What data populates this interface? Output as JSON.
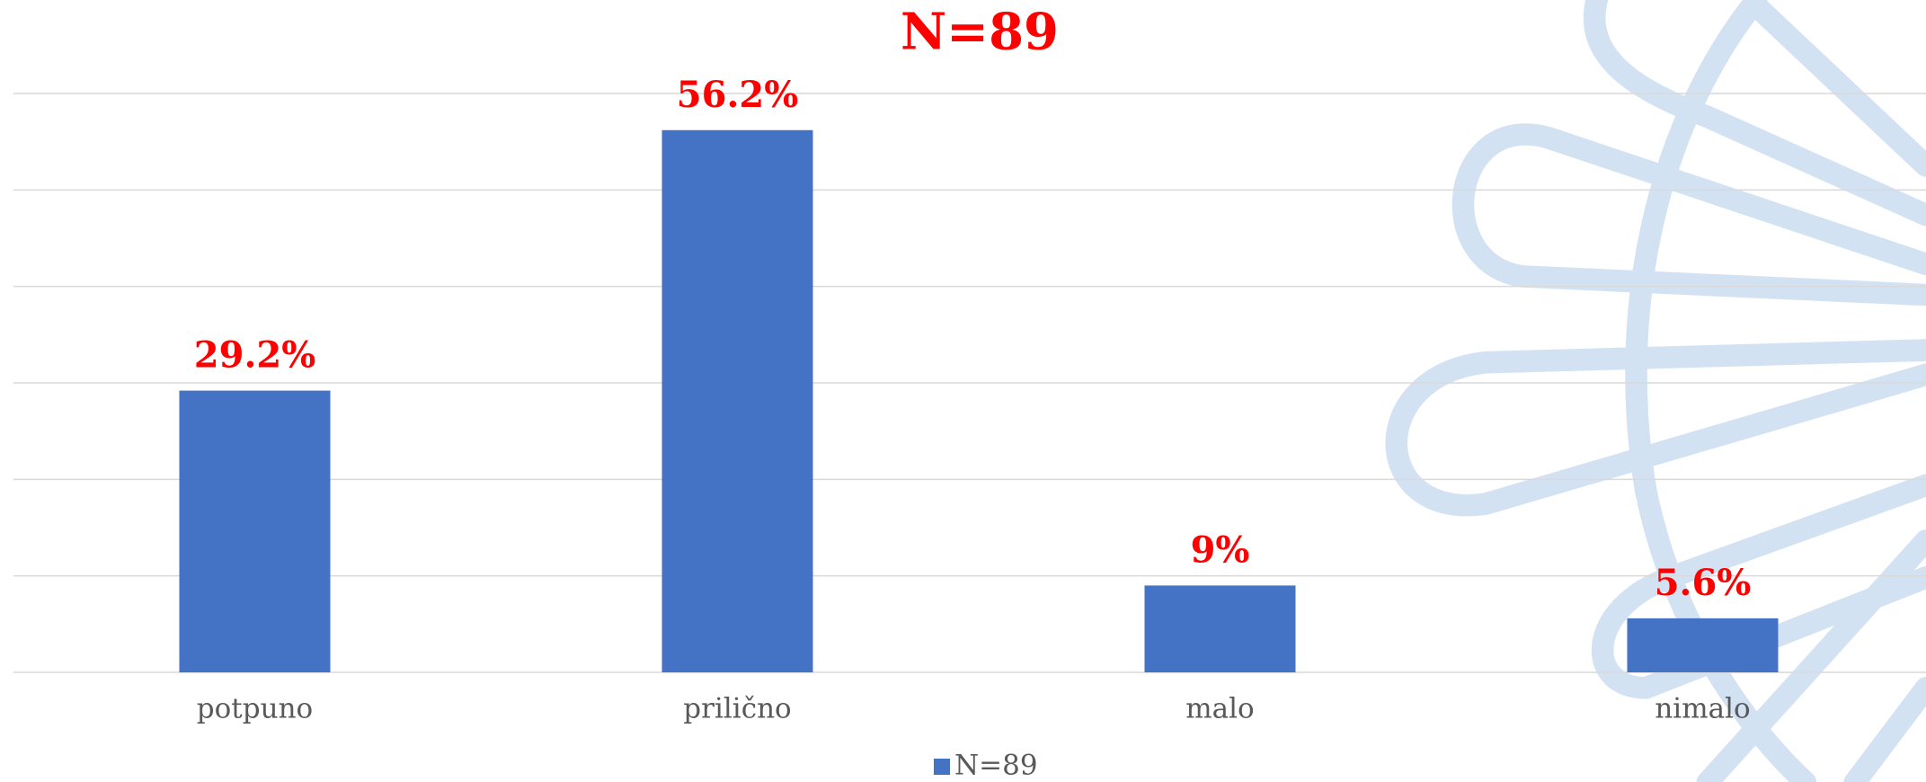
{
  "chart_data": {
    "type": "bar",
    "title": "N=89",
    "categories": [
      "potpuno",
      "prilično",
      "malo",
      "nimalo"
    ],
    "series": [
      {
        "name": "N=89",
        "color": "#4472c4",
        "values": [
          29.2,
          56.2,
          9,
          5.6
        ],
        "value_labels": [
          "29.2%",
          "56.2%",
          "9%",
          "5.6%"
        ]
      }
    ],
    "ylim": [
      0,
      60
    ],
    "yticks": [
      0,
      10,
      20,
      30,
      40,
      50,
      60
    ],
    "grid": true,
    "legend": "bottom"
  }
}
